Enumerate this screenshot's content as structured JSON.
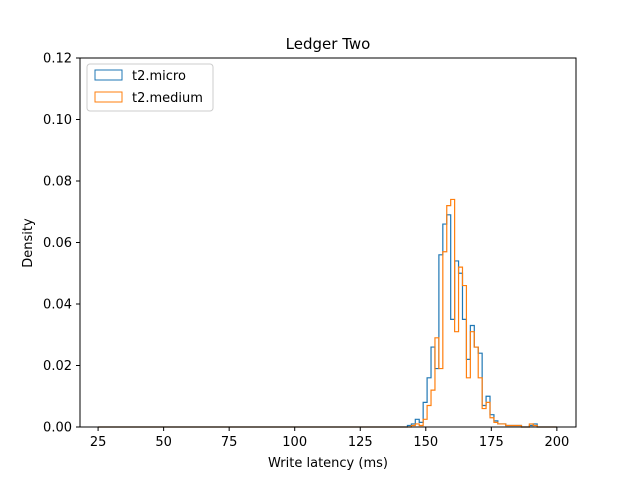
{
  "chart_data": {
    "type": "histogram",
    "title": "Ledger Two",
    "xlabel": "Write latency (ms)",
    "ylabel": "Density",
    "xlim": [
      18.1,
      207.3
    ],
    "ylim": [
      0,
      0.12
    ],
    "xticks": [
      25,
      50,
      75,
      100,
      125,
      150,
      175,
      200
    ],
    "yticks": [
      0.0,
      0.02,
      0.04,
      0.06,
      0.08,
      0.1,
      0.12
    ],
    "ytick_labels": [
      "0.00",
      "0.02",
      "0.04",
      "0.06",
      "0.08",
      "0.10",
      "0.12"
    ],
    "grid": false,
    "legend_position": "top-left",
    "series": [
      {
        "name": "t2.micro",
        "color": "#1f77b4",
        "edges": [
          25,
          143,
          144.5,
          146,
          147.5,
          149,
          150.5,
          152,
          153.5,
          155,
          156.5,
          158,
          159.5,
          161,
          162.5,
          164,
          165.5,
          167,
          168.5,
          170,
          171.5,
          173,
          174.5,
          176,
          177.5,
          179,
          180.5,
          182,
          183.5,
          185,
          186.5,
          188,
          189.5,
          191,
          192.5,
          194,
          195.5,
          197,
          198.5,
          200
        ],
        "values": [
          0.0,
          0.0005,
          0.001,
          0.0025,
          0.0015,
          0.008,
          0.016,
          0.026,
          0.019,
          0.056,
          0.066,
          0.069,
          0.035,
          0.054,
          0.05,
          0.035,
          0.022,
          0.033,
          0.026,
          0.024,
          0.007,
          0.01,
          0.004,
          0.002,
          0.001,
          0.001,
          0.0005,
          0.0005,
          0.0005,
          0.0005,
          0.0,
          0.0,
          0.0005,
          0.001,
          0.0,
          0.0,
          0.0,
          0.0,
          0.0
        ]
      },
      {
        "name": "t2.medium",
        "color": "#ff7f0e",
        "edges": [
          25,
          143,
          144.5,
          146,
          147.5,
          149,
          150.5,
          152,
          153.5,
          155,
          156.5,
          158,
          159.5,
          161,
          162.5,
          164,
          165.5,
          167,
          168.5,
          170,
          171.5,
          173,
          174.5,
          176,
          177.5,
          179,
          180.5,
          182,
          183.5,
          185,
          186.5,
          188,
          189.5,
          191,
          192.5,
          194,
          195.5,
          197,
          198.5,
          200
        ],
        "values": [
          0.0,
          0.0,
          0.0005,
          0.001,
          0.0005,
          0.0025,
          0.007,
          0.012,
          0.029,
          0.019,
          0.057,
          0.072,
          0.074,
          0.031,
          0.052,
          0.046,
          0.016,
          0.031,
          0.026,
          0.016,
          0.006,
          0.008,
          0.003,
          0.0015,
          0.001,
          0.001,
          0.0005,
          0.0005,
          0.0005,
          0.0005,
          0.0,
          0.0,
          0.001,
          0.0005,
          0.0,
          0.0,
          0.0,
          0.0,
          0.0
        ]
      }
    ]
  }
}
